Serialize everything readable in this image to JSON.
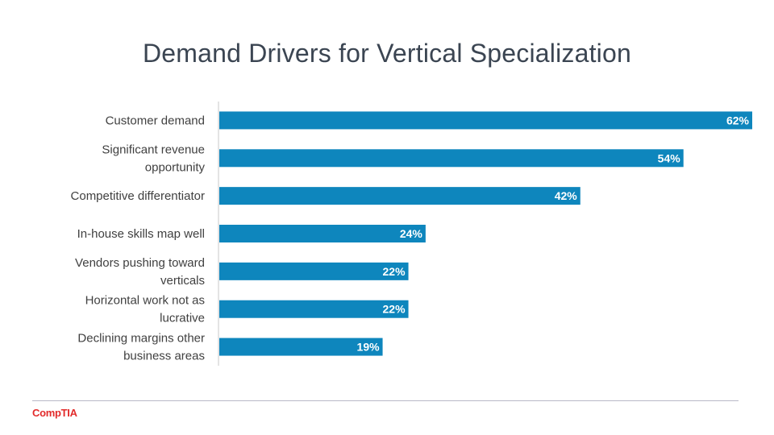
{
  "title": "Demand Drivers for Vertical Specialization",
  "logo_text": "CompTIA",
  "colors": {
    "bar": "#0e86bd",
    "axis": "#c8c8c8",
    "label": "#404040",
    "title": "#3b4552",
    "logo": "#e22b2b"
  },
  "chart_data": {
    "type": "bar",
    "orientation": "horizontal",
    "title": "Demand Drivers for Vertical Specialization",
    "xlabel": "",
    "ylabel": "",
    "xlim": [
      0,
      62
    ],
    "grid": false,
    "value_suffix": "%",
    "categories": [
      [
        "Customer demand"
      ],
      [
        "Significant revenue",
        "opportunity"
      ],
      [
        "Competitive differentiator"
      ],
      [
        "In-house skills map well"
      ],
      [
        "Vendors pushing toward",
        "verticals"
      ],
      [
        "Horizontal work not as",
        "lucrative"
      ],
      [
        "Declining margins other",
        "business areas"
      ]
    ],
    "values": [
      62,
      54,
      42,
      24,
      22,
      22,
      19
    ],
    "data_labels": [
      "62%",
      "54%",
      "42%",
      "24%",
      "22%",
      "22%",
      "19%"
    ]
  }
}
